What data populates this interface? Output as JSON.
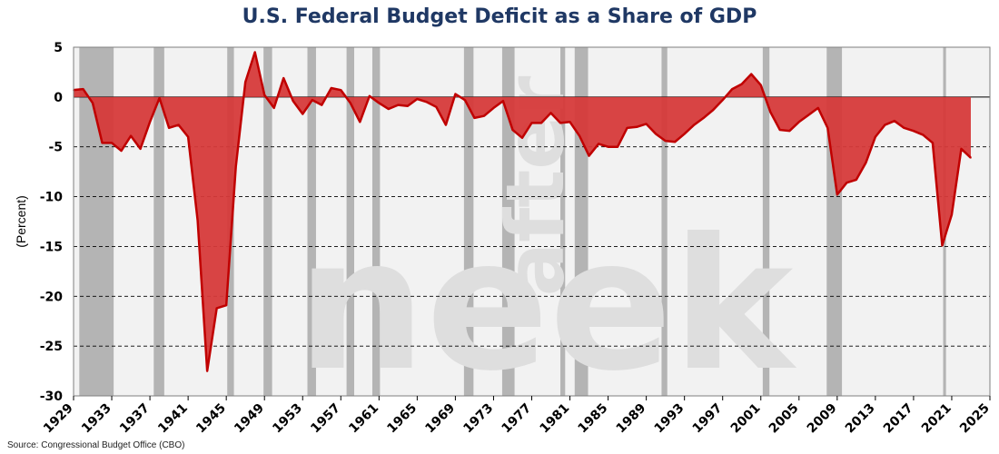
{
  "title": "U.S. Federal Budget Deficit as a Share of GDP",
  "source": "Source: Congressional Budget Office (CBO)",
  "watermark": [
    "after",
    "neek"
  ],
  "colors": {
    "title": "#1f3864",
    "area_fill": "#d63a3a",
    "area_line": "#c00000",
    "recession": "#b4b4b4",
    "plot_bg": "#f2f2f2",
    "grid": "#000000"
  },
  "chart_data": {
    "type": "area",
    "title": "U.S. Federal Budget Deficit as a Share of GDP",
    "xlabel": "",
    "ylabel": "(Percent)",
    "xlim": [
      1929,
      2025
    ],
    "ylim": [
      -30,
      5
    ],
    "y_ticks": [
      5,
      0,
      -5,
      -10,
      -15,
      -20,
      -25,
      -30
    ],
    "x_ticks": [
      1929,
      1933,
      1937,
      1941,
      1945,
      1949,
      1953,
      1957,
      1961,
      1965,
      1969,
      1973,
      1977,
      1981,
      1985,
      1989,
      1993,
      1997,
      2001,
      2005,
      2009,
      2013,
      2017,
      2021,
      2025
    ],
    "grid": "dashed horizontal at y-ticks",
    "recessions": [
      [
        1929.6,
        1933.2
      ],
      [
        1937.4,
        1938.5
      ],
      [
        1945.1,
        1945.8
      ],
      [
        1948.9,
        1949.8
      ],
      [
        1953.5,
        1954.4
      ],
      [
        1957.6,
        1958.4
      ],
      [
        1960.3,
        1961.1
      ],
      [
        1969.9,
        1970.9
      ],
      [
        1973.9,
        1975.2
      ],
      [
        1980.0,
        1980.5
      ],
      [
        1981.5,
        1982.9
      ],
      [
        1990.6,
        1991.2
      ],
      [
        2001.2,
        2001.9
      ],
      [
        2007.9,
        2009.5
      ],
      [
        2020.1,
        2020.4
      ]
    ],
    "series": [
      {
        "x": [
          1929,
          1930,
          1931,
          1932,
          1933,
          1934,
          1935,
          1936,
          1937,
          1938,
          1939,
          1940,
          1941,
          1942,
          1943,
          1944,
          1945,
          1946,
          1947,
          1948,
          1949,
          1950,
          1951,
          1952,
          1953,
          1954,
          1955,
          1956,
          1957,
          1958,
          1959,
          1960,
          1961,
          1962,
          1963,
          1964,
          1965,
          1966,
          1967,
          1968,
          1969,
          1970,
          1971,
          1972,
          1973,
          1974,
          1975,
          1976,
          1977,
          1978,
          1979,
          1980,
          1981,
          1982,
          1983,
          1984,
          1985,
          1986,
          1987,
          1988,
          1989,
          1990,
          1991,
          1992,
          1993,
          1994,
          1995,
          1996,
          1997,
          1998,
          1999,
          2000,
          2001,
          2002,
          2003,
          2004,
          2005,
          2006,
          2007,
          2008,
          2009,
          2010,
          2011,
          2012,
          2013,
          2014,
          2015,
          2016,
          2017,
          2018,
          2019,
          2020,
          2021,
          2022,
          2023
        ],
        "values": [
          0.7,
          0.8,
          -0.6,
          -4.6,
          -4.6,
          -5.4,
          -3.9,
          -5.2,
          -2.5,
          -0.1,
          -3.1,
          -2.8,
          -4.0,
          -12.4,
          -27.5,
          -21.2,
          -20.9,
          -7.0,
          1.5,
          4.5,
          0.2,
          -1.1,
          1.9,
          -0.4,
          -1.7,
          -0.3,
          -0.8,
          0.9,
          0.7,
          -0.6,
          -2.5,
          0.1,
          -0.6,
          -1.2,
          -0.8,
          -0.9,
          -0.2,
          -0.5,
          -1.0,
          -2.8,
          0.3,
          -0.3,
          -2.1,
          -1.9,
          -1.1,
          -0.4,
          -3.3,
          -4.1,
          -2.6,
          -2.6,
          -1.6,
          -2.6,
          -2.5,
          -3.9,
          -5.9,
          -4.7,
          -5.0,
          -5.0,
          -3.1,
          -3.0,
          -2.7,
          -3.7,
          -4.4,
          -4.5,
          -3.7,
          -2.8,
          -2.1,
          -1.3,
          -0.3,
          0.8,
          1.3,
          2.3,
          1.2,
          -1.5,
          -3.3,
          -3.4,
          -2.5,
          -1.8,
          -1.1,
          -3.1,
          -9.8,
          -8.6,
          -8.3,
          -6.6,
          -4.0,
          -2.8,
          -2.4,
          -3.1,
          -3.4,
          -3.8,
          -4.6,
          -14.9,
          -11.8,
          -5.2,
          -6.1
        ]
      }
    ]
  }
}
